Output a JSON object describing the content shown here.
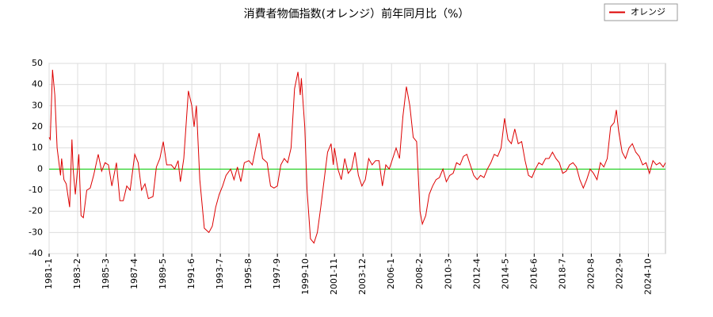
{
  "chart_data": {
    "type": "line",
    "title": "消費者物価指数(オレンジ）前年同月比（%）",
    "x": [
      "1981-1",
      "1981-2",
      "1981-4",
      "1981-6",
      "1981-8",
      "1981-11",
      "1981-12",
      "1982-2",
      "1982-4",
      "1982-7",
      "1982-9",
      "1982-10",
      "1982-12",
      "1983-3",
      "1983-5",
      "1983-7",
      "1983-10",
      "1984-1",
      "1984-4",
      "1984-8",
      "1984-11",
      "1985-2",
      "1985-5",
      "1985-8",
      "1985-12",
      "1986-3",
      "1986-6",
      "1986-9",
      "1986-12",
      "1987-4",
      "1987-7",
      "1987-10",
      "1988-1",
      "1988-4",
      "1988-8",
      "1988-11",
      "1989-2",
      "1989-5",
      "1989-8",
      "1989-12",
      "1990-3",
      "1990-6",
      "1990-8",
      "1990-11",
      "1991-3",
      "1991-6",
      "1991-8",
      "1991-10",
      "1992-1",
      "1992-5",
      "1992-9",
      "1992-12",
      "1993-3",
      "1993-6",
      "1993-9",
      "1993-12",
      "1994-4",
      "1994-7",
      "1994-10",
      "1995-1",
      "1995-4",
      "1995-8",
      "1995-11",
      "1996-2",
      "1996-5",
      "1996-8",
      "1996-12",
      "1997-3",
      "1997-6",
      "1997-9",
      "1997-12",
      "1998-3",
      "1998-6",
      "1998-9",
      "1998-12",
      "1999-3",
      "1999-5",
      "1999-6",
      "1999-9",
      "1999-11",
      "2000-2",
      "2000-5",
      "2000-8",
      "2000-11",
      "2001-2",
      "2001-5",
      "2001-8",
      "2001-10",
      "2001-11",
      "2002-2",
      "2002-5",
      "2002-8",
      "2002-11",
      "2003-2",
      "2003-5",
      "2003-8",
      "2003-11",
      "2004-2",
      "2004-5",
      "2004-8",
      "2004-11",
      "2005-2",
      "2005-5",
      "2005-8",
      "2005-11",
      "2006-2",
      "2006-5",
      "2006-8",
      "2006-11",
      "2007-2",
      "2007-5",
      "2007-8",
      "2007-11",
      "2008-2",
      "2008-4",
      "2008-7",
      "2008-10",
      "2009-1",
      "2009-4",
      "2009-7",
      "2009-10",
      "2010-1",
      "2010-4",
      "2010-7",
      "2010-10",
      "2011-1",
      "2011-4",
      "2011-7",
      "2011-10",
      "2012-1",
      "2012-4",
      "2012-7",
      "2012-10",
      "2013-1",
      "2013-4",
      "2013-7",
      "2013-10",
      "2014-1",
      "2014-4",
      "2014-7",
      "2014-10",
      "2015-1",
      "2015-4",
      "2015-7",
      "2015-10",
      "2016-1",
      "2016-4",
      "2016-7",
      "2016-10",
      "2017-1",
      "2017-4",
      "2017-7",
      "2017-10",
      "2018-1",
      "2018-4",
      "2018-7",
      "2018-10",
      "2019-1",
      "2019-4",
      "2019-7",
      "2019-10",
      "2020-1",
      "2020-4",
      "2020-7",
      "2020-10",
      "2021-1",
      "2021-4",
      "2021-7",
      "2021-10",
      "2022-1",
      "2022-4",
      "2022-6",
      "2022-8",
      "2022-11",
      "2023-2",
      "2023-5",
      "2023-8",
      "2023-11",
      "2024-2",
      "2024-5",
      "2024-8",
      "2024-11",
      "2025-2",
      "2025-5",
      "2025-8",
      "2025-11",
      "2026-1"
    ],
    "series": [
      {
        "name": "オレンジ",
        "color": "#dd0000",
        "values": [
          15,
          14,
          47,
          35,
          10,
          -3,
          5,
          -5,
          -7,
          -18,
          14,
          0,
          -12,
          7,
          -22,
          -23,
          -10,
          -9,
          -3,
          7,
          -1,
          3,
          2,
          -8,
          3,
          -15,
          -15,
          -8,
          -10,
          7,
          3,
          -10,
          -7,
          -14,
          -13,
          1,
          5,
          13,
          2,
          2,
          0,
          4,
          -6,
          5,
          37,
          30,
          20,
          30,
          -5,
          -28,
          -30,
          -27,
          -18,
          -12,
          -8,
          -3,
          0,
          -5,
          1,
          -6,
          3,
          4,
          2,
          10,
          17,
          5,
          3,
          -8,
          -9,
          -8,
          2,
          5,
          3,
          10,
          38,
          46,
          35,
          43,
          20,
          -10,
          -33,
          -35,
          -30,
          -18,
          -5,
          8,
          12,
          2,
          10,
          0,
          -5,
          5,
          -2,
          0,
          8,
          -3,
          -8,
          -5,
          5,
          2,
          4,
          4,
          -8,
          2,
          0,
          5,
          10,
          5,
          25,
          39,
          30,
          15,
          13,
          -20,
          -26,
          -22,
          -12,
          -8,
          -5,
          -4,
          0,
          -6,
          -3,
          -2,
          3,
          2,
          6,
          7,
          2,
          -3,
          -5,
          -3,
          -4,
          0,
          3,
          7,
          6,
          10,
          24,
          14,
          12,
          19,
          12,
          13,
          4,
          -3,
          -4,
          0,
          3,
          2,
          5,
          5,
          8,
          5,
          3,
          -2,
          -1,
          2,
          3,
          1,
          -5,
          -9,
          -5,
          0,
          -2,
          -5,
          3,
          1,
          5,
          20,
          22,
          28,
          18,
          8,
          5,
          10,
          12,
          8,
          6,
          2,
          3,
          -2,
          4,
          2,
          3,
          1,
          3
        ]
      }
    ],
    "xlim": [
      "1981-1",
      "2026-1"
    ],
    "xticks": [
      "1981-1",
      "1983-2",
      "1985-3",
      "1987-4",
      "1989-5",
      "1991-6",
      "1993-7",
      "1995-8",
      "1997-9",
      "1999-10",
      "2001-11",
      "2003-12",
      "2006-1",
      "2008-2",
      "2010-3",
      "2012-4",
      "2014-5",
      "2016-6",
      "2018-7",
      "2020-8",
      "2022-9",
      "2024-10"
    ],
    "ylim": [
      -40,
      50
    ],
    "yticks": [
      -40,
      -30,
      -20,
      -10,
      0,
      10,
      20,
      30,
      40,
      50
    ],
    "grid": true,
    "legend": "top-right",
    "reference_line": {
      "y": 0,
      "color": "#00cc00"
    }
  }
}
